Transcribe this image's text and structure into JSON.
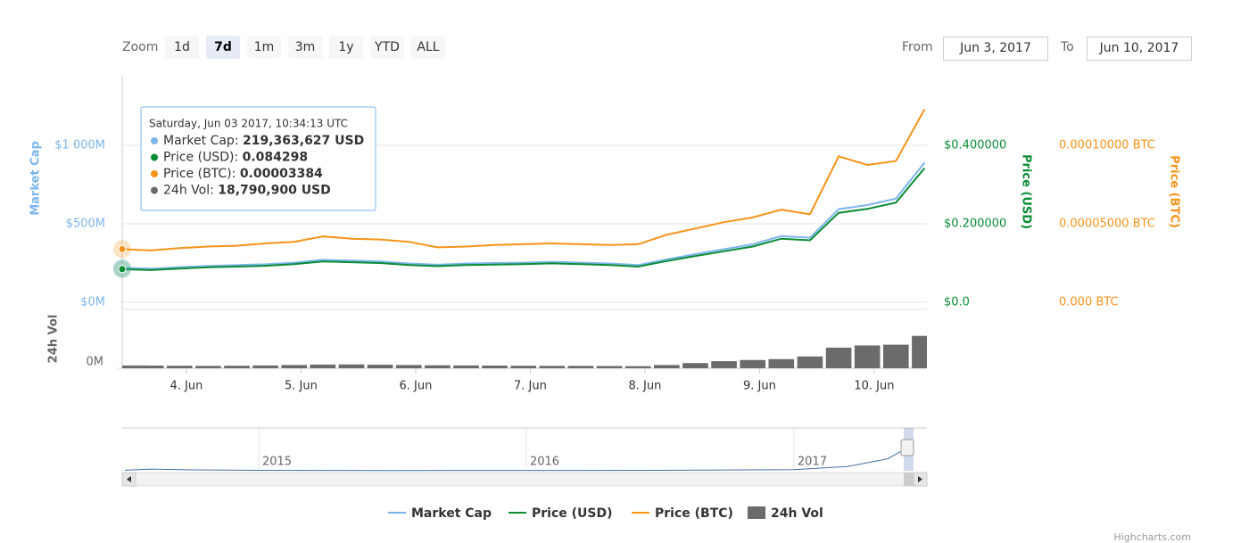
{
  "controls": {
    "zoom_label": "Zoom",
    "zoom_buttons": [
      "1d",
      "7d",
      "1m",
      "3m",
      "1y",
      "YTD",
      "ALL"
    ],
    "zoom_selected": "7d",
    "from_label": "From",
    "from": "Jun 3, 2017",
    "to_label": "To",
    "to": "Jun 10, 2017"
  },
  "credits": "Highcharts.com",
  "chart_data": {
    "type": "line",
    "x": [
      3.44,
      3.69,
      3.94,
      4.19,
      4.44,
      4.69,
      4.94,
      5.19,
      5.44,
      5.69,
      5.94,
      6.19,
      6.44,
      6.69,
      6.94,
      7.19,
      7.44,
      7.69,
      7.94,
      8.19,
      8.44,
      8.69,
      8.94,
      9.19,
      9.44,
      9.69,
      9.94,
      10.19,
      10.44
    ],
    "xlim": [
      3.44,
      10.46
    ],
    "xticks": [
      {
        "value": 4,
        "label": "4. Jun"
      },
      {
        "value": 5,
        "label": "5. Jun"
      },
      {
        "value": 6,
        "label": "6. Jun"
      },
      {
        "value": 7,
        "label": "7. Jun"
      },
      {
        "value": 8,
        "label": "8. Jun"
      },
      {
        "value": 9,
        "label": "9. Jun"
      },
      {
        "value": 10,
        "label": "10. Jun"
      }
    ],
    "y_label": "Market Cap",
    "ylim": [
      0,
      1443000000
    ],
    "yticks": [
      {
        "value": 0,
        "label": "$0M"
      },
      {
        "value": 500000000,
        "label": "$500M"
      },
      {
        "value": 1000000000,
        "label": "$1 000M"
      }
    ],
    "y2_label": "Price (USD)",
    "y2lim": [
      0,
      0.5772
    ],
    "y2ticks": [
      {
        "value": 0,
        "label": "$0.0"
      },
      {
        "value": 0.2,
        "label": "$0.200000"
      },
      {
        "value": 0.4,
        "label": "$0.400000"
      }
    ],
    "y3_label": "Price (BTC)",
    "y3lim": [
      0,
      0.0001443
    ],
    "y3ticks": [
      {
        "value": 0,
        "label": "0.000 BTC"
      },
      {
        "value": 5e-05,
        "label": "0.00005000 BTC"
      },
      {
        "value": 0.0001,
        "label": "0.00010000 BTC"
      }
    ],
    "vol_label": "24h Vol",
    "vol_ylim": [
      0,
      400000000
    ],
    "vol_yticks": [
      {
        "value": 0,
        "label": "0M"
      }
    ],
    "grid": true,
    "series": [
      {
        "name": "Market Cap",
        "type": "line",
        "axis": "y",
        "color": "#7cb5ec",
        "values": [
          219363627,
          213400000,
          223800000,
          231600000,
          236800000,
          242000000,
          252400000,
          270600000,
          265400000,
          260200000,
          247200000,
          239400000,
          247200000,
          249800000,
          252400000,
          257600000,
          252400000,
          247200000,
          236800000,
          273200000,
          307000000,
          338300000,
          369500000,
          421500000,
          411100000,
          593300000,
          619300000,
          660900000,
          889900000
        ]
      },
      {
        "name": "Price (USD)",
        "type": "line",
        "axis": "y2",
        "color": "#0a8c34",
        "values": [
          0.084298,
          0.082,
          0.086,
          0.089,
          0.091,
          0.093,
          0.097,
          0.104,
          0.102,
          0.1,
          0.095,
          0.092,
          0.095,
          0.096,
          0.097,
          0.099,
          0.097,
          0.095,
          0.091,
          0.105,
          0.118,
          0.13,
          0.142,
          0.162,
          0.158,
          0.228,
          0.238,
          0.254,
          0.342
        ]
      },
      {
        "name": "Price (BTC)",
        "type": "line",
        "axis": "y3",
        "color": "#f7931a",
        "values": [
          3.384e-05,
          3.3e-05,
          3.45e-05,
          3.55e-05,
          3.6e-05,
          3.75e-05,
          3.85e-05,
          4.2e-05,
          4.05e-05,
          4e-05,
          3.85e-05,
          3.5e-05,
          3.55e-05,
          3.65e-05,
          3.7e-05,
          3.75e-05,
          3.7e-05,
          3.65e-05,
          3.7e-05,
          4.3e-05,
          4.7e-05,
          5.1e-05,
          5.4e-05,
          5.9e-05,
          5.6e-05,
          9.3e-05,
          8.75e-05,
          9e-05,
          0.000123
        ]
      },
      {
        "name": "24h Vol",
        "type": "column",
        "axis": "vol",
        "color": "#6b6b6b",
        "values": [
          18790900,
          18000000,
          17000000,
          16000000,
          17000000,
          19000000,
          22000000,
          25000000,
          26000000,
          24000000,
          22000000,
          20000000,
          19000000,
          18000000,
          17000000,
          16000000,
          16000000,
          15000000,
          14000000,
          22000000,
          35000000,
          48000000,
          56000000,
          62000000,
          80000000,
          140000000,
          155000000,
          160000000,
          220000000
        ]
      }
    ],
    "tooltip": {
      "date": "Saturday, Jun 03 2017, 10:34:13 UTC",
      "rows": [
        {
          "label": "Market Cap: ",
          "value": "219,363,627 USD"
        },
        {
          "label": "Price (USD): ",
          "value": "0.084298"
        },
        {
          "label": "Price (BTC): ",
          "value": "0.00003384"
        },
        {
          "label": "24h Vol: ",
          "value": "18,790,900 USD"
        }
      ]
    },
    "navigator": {
      "x": [
        2014.5,
        2014.6,
        2014.75,
        2015,
        2015.5,
        2016,
        2016.5,
        2017,
        2017.2,
        2017.35,
        2017.44
      ],
      "values": [
        20000000,
        60000000,
        30000000,
        15000000,
        10000000,
        12000000,
        15000000,
        40000000,
        150000000,
        420000000,
        890000000
      ],
      "xlim": [
        2014.49,
        2017.497
      ],
      "ylim": [
        0,
        1500000000
      ],
      "xticks": [
        2015,
        2016,
        2017
      ]
    }
  }
}
